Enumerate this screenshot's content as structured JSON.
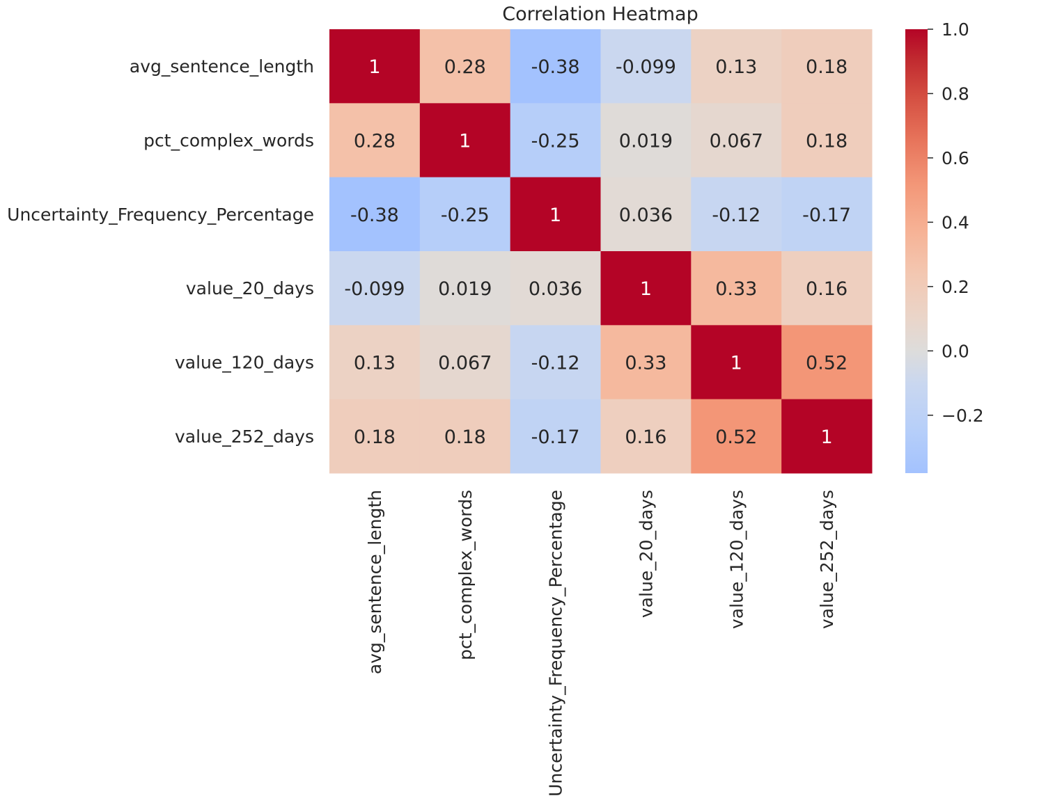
{
  "chart_data": {
    "type": "heatmap",
    "title": "Correlation Heatmap",
    "row_labels": [
      "avg_sentence_length",
      "pct_complex_words",
      "Uncertainty_Frequency_Percentage",
      "value_20_days",
      "value_120_days",
      "value_252_days"
    ],
    "col_labels": [
      "avg_sentence_length",
      "pct_complex_words",
      "Uncertainty_Frequency_Percentage",
      "value_20_days",
      "value_120_days",
      "value_252_days"
    ],
    "values": [
      [
        1,
        0.28,
        -0.38,
        -0.099,
        0.13,
        0.18
      ],
      [
        0.28,
        1,
        -0.25,
        0.019,
        0.067,
        0.18
      ],
      [
        -0.38,
        -0.25,
        1,
        0.036,
        -0.12,
        -0.17
      ],
      [
        -0.099,
        0.019,
        0.036,
        1,
        0.33,
        0.16
      ],
      [
        0.13,
        0.067,
        -0.12,
        0.33,
        1,
        0.52
      ],
      [
        0.18,
        0.18,
        -0.17,
        0.16,
        0.52,
        1
      ]
    ],
    "annotations": [
      [
        "1",
        "0.28",
        "-0.38",
        "-0.099",
        "0.13",
        "0.18"
      ],
      [
        "0.28",
        "1",
        "-0.25",
        "0.019",
        "0.067",
        "0.18"
      ],
      [
        "-0.38",
        "-0.25",
        "1",
        "0.036",
        "-0.12",
        "-0.17"
      ],
      [
        "-0.099",
        "0.019",
        "0.036",
        "1",
        "0.33",
        "0.16"
      ],
      [
        "0.13",
        "0.067",
        "-0.12",
        "0.33",
        "1",
        "0.52"
      ],
      [
        "0.18",
        "0.18",
        "-0.17",
        "0.16",
        "0.52",
        "1"
      ]
    ],
    "colormap": "coolwarm",
    "colorbar": {
      "vmin": -0.38,
      "vmax": 1.0,
      "ticks": [
        1.0,
        0.8,
        0.6,
        0.4,
        0.2,
        0.0,
        -0.2
      ],
      "tick_labels": [
        "1.0",
        "0.8",
        "0.6",
        "0.4",
        "0.2",
        "0.0",
        "−0.2"
      ]
    },
    "colors": {
      "min": "#a3c2fe",
      "center": "#dddcdb",
      "max": "#b40426",
      "text_dark": "#262626",
      "text_light": "#ffffff"
    }
  }
}
